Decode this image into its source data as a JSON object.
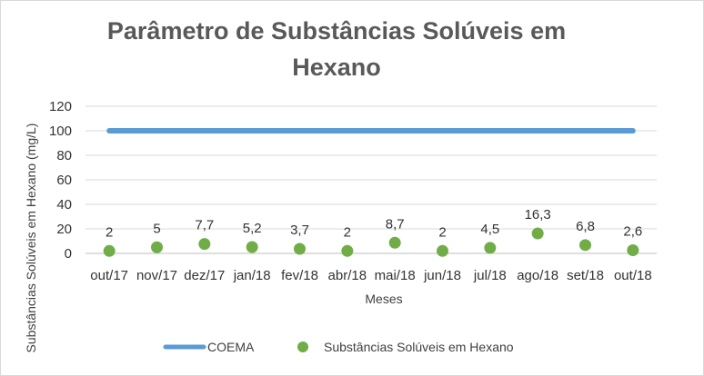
{
  "chart_data": {
    "type": "line",
    "title": "Parâmetro de Substâncias Solúveis em Hexano",
    "title_lines": [
      "Parâmetro de Substâncias Solúveis em",
      "Hexano"
    ],
    "xlabel": "Meses",
    "ylabel": "Substâncias Solúveis em Hexano (mg/L)",
    "categories": [
      "out/17",
      "nov/17",
      "dez/17",
      "jan/18",
      "fev/18",
      "abr/18",
      "mai/18",
      "jun/18",
      "jul/18",
      "ago/18",
      "set/18",
      "out/18"
    ],
    "ylim": [
      0,
      120
    ],
    "yticks": [
      0,
      20,
      40,
      60,
      80,
      100,
      120
    ],
    "grid": true,
    "legend_position": "bottom",
    "series": [
      {
        "name": "COEMA",
        "style": "line",
        "color": "#5b9bd5",
        "values": [
          100,
          100,
          100,
          100,
          100,
          100,
          100,
          100,
          100,
          100,
          100,
          100
        ]
      },
      {
        "name": "Substâncias Solúveis em Hexano",
        "style": "marker",
        "color": "#70ad47",
        "values": [
          2,
          5,
          7.7,
          5.2,
          3.7,
          2,
          8.7,
          2,
          4.5,
          16.3,
          6.8,
          2.6
        ],
        "data_labels": [
          "2",
          "5",
          "7,7",
          "5,2",
          "3,7",
          "2",
          "8,7",
          "2",
          "4,5",
          "16,3",
          "6,8",
          "2,6"
        ]
      }
    ]
  }
}
